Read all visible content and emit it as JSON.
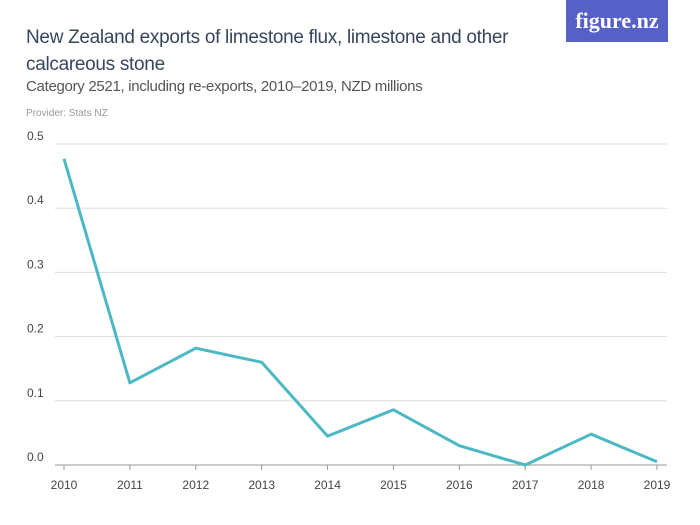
{
  "header": {
    "title": "New Zealand exports of limestone flux, limestone and other calcareous stone",
    "subtitle": "Category 2521, including re-exports, 2010–2019, NZD millions",
    "provider": "Provider: Stats NZ",
    "logo": "figure.nz"
  },
  "colors": {
    "line": "#4bb8c4",
    "grid": "#dddddd",
    "logo_bg": "#5561c6"
  },
  "chart_data": {
    "type": "line",
    "title": "New Zealand exports of limestone flux, limestone and other calcareous stone",
    "subtitle": "Category 2521, including re-exports, 2010–2019, NZD millions",
    "x": [
      "2010",
      "2011",
      "2012",
      "2013",
      "2014",
      "2015",
      "2016",
      "2017",
      "2018",
      "2019"
    ],
    "series": [
      {
        "values": [
          0.477,
          0.128,
          0.182,
          0.16,
          0.045,
          0.086,
          0.03,
          0.0,
          0.048,
          0.005
        ]
      }
    ],
    "ylim": [
      0,
      0.5
    ],
    "yticks": [
      "0.0",
      "0.1",
      "0.2",
      "0.3",
      "0.4",
      "0.5"
    ],
    "grid": true
  }
}
